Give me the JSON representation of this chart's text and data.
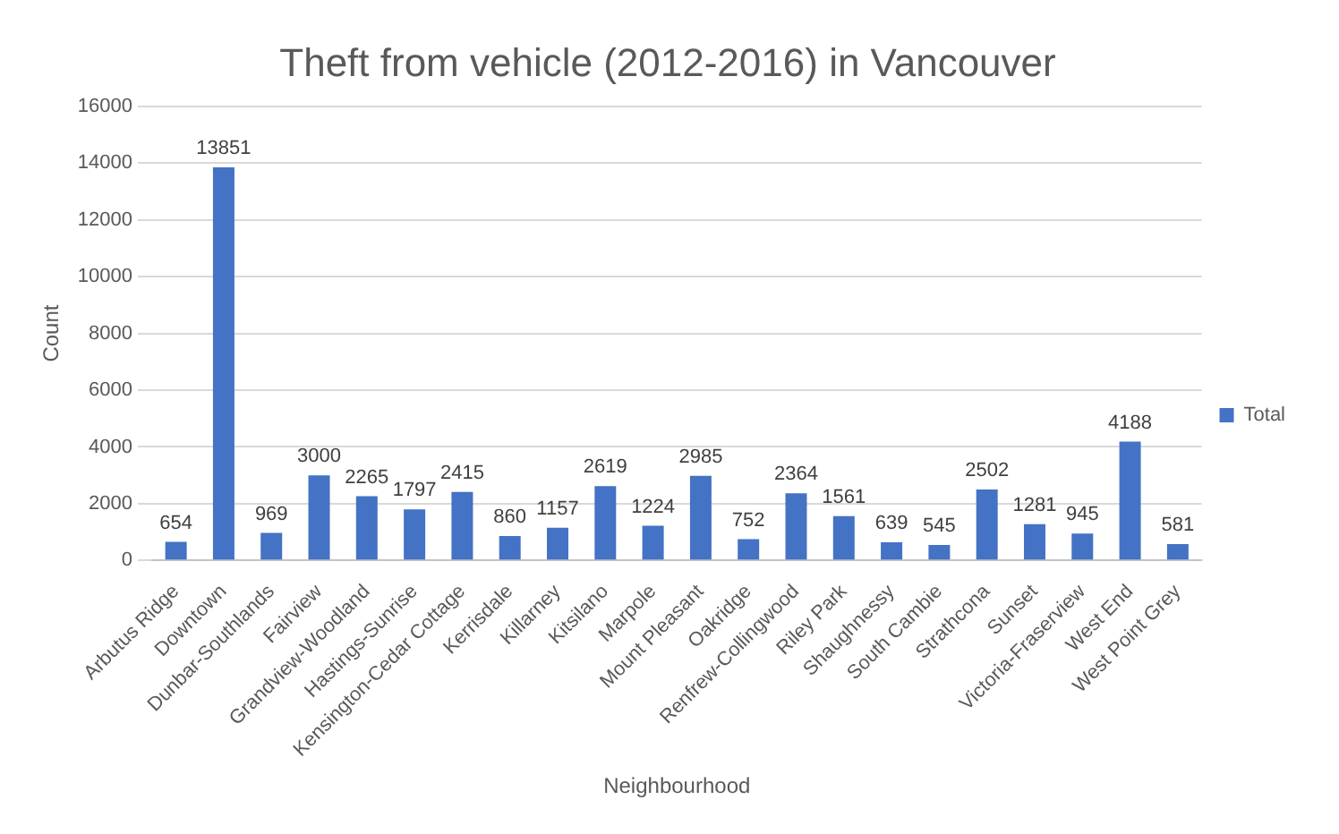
{
  "chart_data": {
    "type": "bar",
    "title": "Theft from vehicle (2012-2016) in Vancouver",
    "xlabel": "Neighbourhood",
    "ylabel": "Count",
    "categories": [
      "Arbutus Ridge",
      "Downtown",
      "Dunbar-Southlands",
      "Fairview",
      "Grandview-Woodland",
      "Hastings-Sunrise",
      "Kensington-Cedar Cottage",
      "Kerrisdale",
      "Killarney",
      "Kitsilano",
      "Marpole",
      "Mount Pleasant",
      "Oakridge",
      "Renfrew-Collingwood",
      "Riley Park",
      "Shaughnessy",
      "South Cambie",
      "Strathcona",
      "Sunset",
      "Victoria-Fraserview",
      "West End",
      "West Point Grey"
    ],
    "series": [
      {
        "name": "Total",
        "color": "#4472c4",
        "values": [
          654,
          13851,
          969,
          3000,
          2265,
          1797,
          2415,
          860,
          1157,
          2619,
          1224,
          2985,
          752,
          2364,
          1561,
          639,
          545,
          2502,
          1281,
          945,
          4188,
          581
        ]
      }
    ],
    "ylim": [
      0,
      16000
    ],
    "yticks": [
      0,
      2000,
      4000,
      6000,
      8000,
      10000,
      12000,
      14000,
      16000
    ],
    "grid": "y",
    "legend": "right",
    "data_labels": true
  }
}
